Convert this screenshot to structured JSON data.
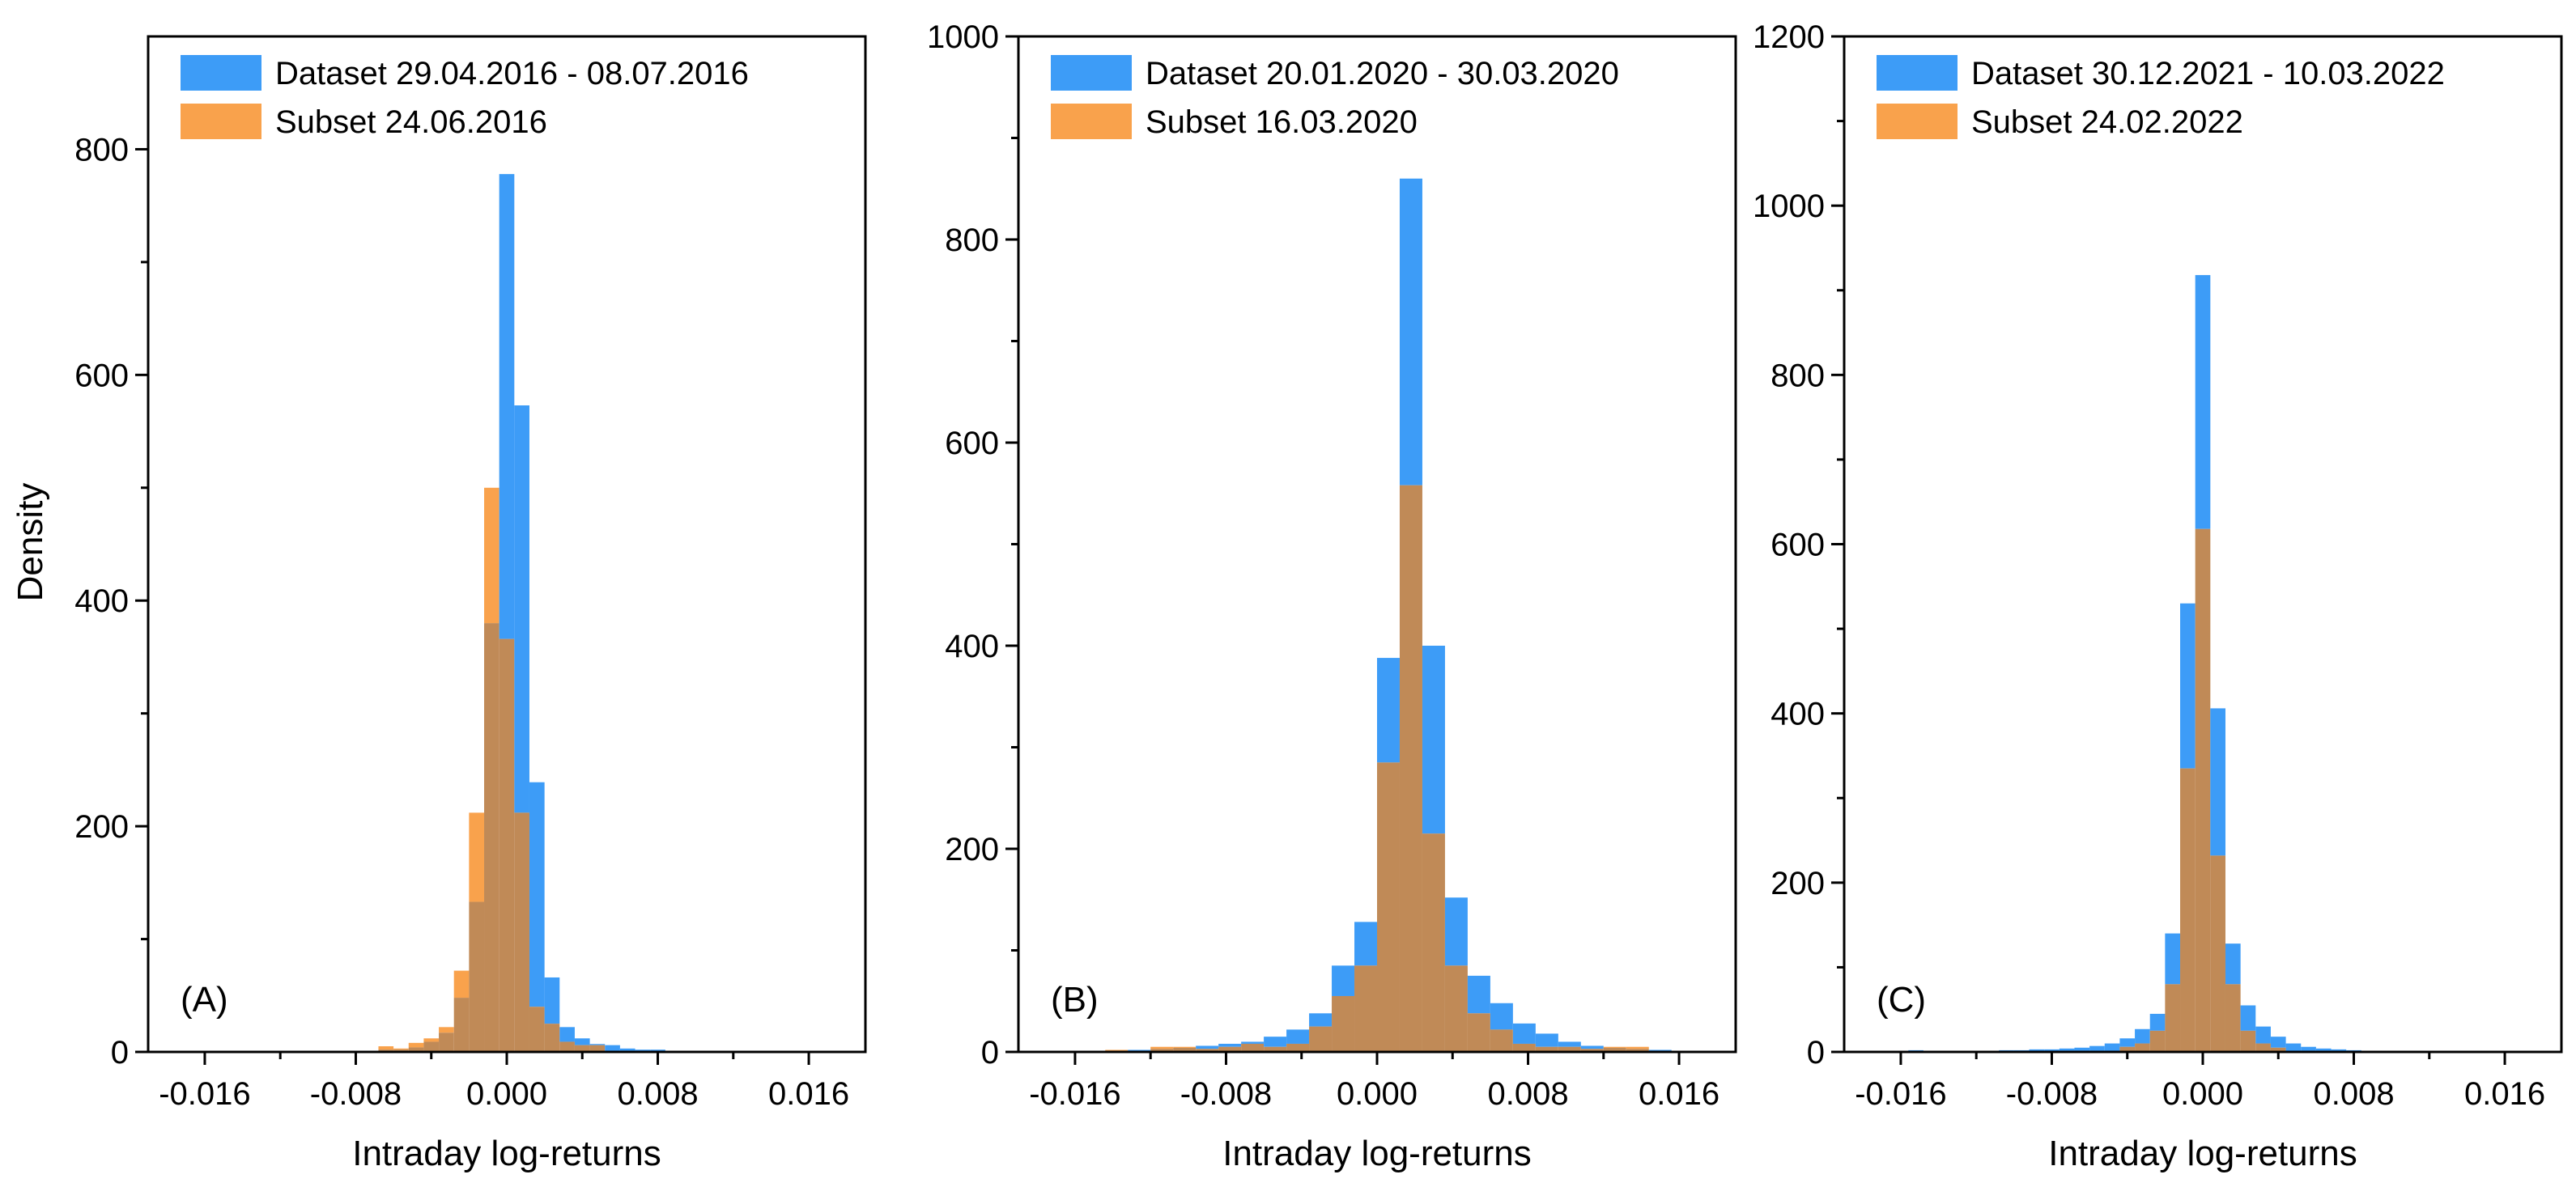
{
  "figure": {
    "ylabel": "Density",
    "colors": {
      "dataset": "#3d9cf7",
      "subset": "#f9a24c",
      "overlap": "#c08a57"
    }
  },
  "chart_data": [
    {
      "type": "bar",
      "panel_label": "(A)",
      "xlabel": "Intraday log-returns",
      "ylabel": "Density",
      "xlim": [
        -0.019,
        0.019
      ],
      "ylim": [
        0,
        900
      ],
      "xticks": [
        -0.016,
        -0.008,
        0.0,
        0.008,
        0.016
      ],
      "xtick_labels": [
        "-0.016",
        "-0.008",
        "0.000",
        "0.008",
        "0.016"
      ],
      "yticks": [
        0,
        200,
        400,
        600,
        800
      ],
      "ytick_labels": [
        "0",
        "200",
        "400",
        "600",
        "800"
      ],
      "legend_position": "top-left",
      "bin_width": 0.0008,
      "series": [
        {
          "name": "Dataset 29.04.2016 - 08.07.2016",
          "color": "#3d9cf7",
          "bin_start": [
            -0.0108,
            -0.01,
            -0.0092,
            -0.0084,
            -0.0076,
            -0.0068,
            -0.006,
            -0.0052,
            -0.0044,
            -0.0036,
            -0.0028,
            -0.002,
            -0.0012,
            -0.0004,
            0.0004,
            0.0012,
            0.002,
            0.0028,
            0.0036,
            0.0044,
            0.0052,
            0.006,
            0.0068,
            0.0076,
            0.0084,
            0.0092,
            0.01,
            0.0108,
            0.0116,
            0.0124
          ],
          "values": [
            1,
            0,
            1,
            0,
            1,
            2,
            2,
            4,
            9,
            17,
            48,
            133,
            380,
            778,
            573,
            239,
            66,
            22,
            12,
            7,
            6,
            3,
            2,
            2,
            1,
            1,
            1,
            0,
            1,
            0
          ]
        },
        {
          "name": "Subset 24.06.2016",
          "color": "#f9a24c",
          "bin_start": [
            -0.0108,
            -0.01,
            -0.0092,
            -0.0084,
            -0.0076,
            -0.0068,
            -0.006,
            -0.0052,
            -0.0044,
            -0.0036,
            -0.0028,
            -0.002,
            -0.0012,
            -0.0004,
            0.0004,
            0.0012,
            0.002,
            0.0028,
            0.0036,
            0.0044,
            0.0052,
            0.006,
            0.0068,
            0.0076,
            0.0084,
            0.0092,
            0.01,
            0.0108,
            0.0116,
            0.0124
          ],
          "values": [
            0,
            0,
            0,
            0,
            0,
            5,
            3,
            8,
            12,
            22,
            72,
            212,
            500,
            366,
            212,
            40,
            25,
            9,
            6,
            6,
            0,
            0,
            0,
            0,
            0,
            0,
            0,
            0,
            0,
            0
          ]
        }
      ]
    },
    {
      "type": "bar",
      "panel_label": "(B)",
      "xlabel": "Intraday log-returns",
      "ylabel": "",
      "xlim": [
        -0.019,
        0.019
      ],
      "ylim": [
        0,
        1000
      ],
      "xticks": [
        -0.016,
        -0.008,
        0.0,
        0.008,
        0.016
      ],
      "xtick_labels": [
        "-0.016",
        "-0.008",
        "0.000",
        "0.008",
        "0.016"
      ],
      "yticks": [
        0,
        200,
        400,
        600,
        800,
        1000
      ],
      "ytick_labels": [
        "0",
        "200",
        "400",
        "600",
        "800",
        "1000"
      ],
      "legend_position": "top-left",
      "bin_width": 0.0012,
      "series": [
        {
          "name": "Dataset 20.01.2020 - 30.03.2020",
          "color": "#3d9cf7",
          "bin_start": [
            -0.0156,
            -0.0144,
            -0.0132,
            -0.012,
            -0.0108,
            -0.0096,
            -0.0084,
            -0.0072,
            -0.006,
            -0.0048,
            -0.0036,
            -0.0024,
            -0.0012,
            0.0,
            0.0012,
            0.0024,
            0.0036,
            0.0048,
            0.006,
            0.0072,
            0.0084,
            0.0096,
            0.0108,
            0.012,
            0.0132,
            0.0144
          ],
          "values": [
            1,
            1,
            2,
            3,
            4,
            6,
            8,
            10,
            15,
            22,
            38,
            85,
            128,
            388,
            860,
            400,
            152,
            75,
            48,
            28,
            18,
            10,
            6,
            4,
            3,
            2
          ]
        },
        {
          "name": "Subset 16.03.2020",
          "color": "#f9a24c",
          "bin_start": [
            -0.0156,
            -0.0144,
            -0.0132,
            -0.012,
            -0.0108,
            -0.0096,
            -0.0084,
            -0.0072,
            -0.006,
            -0.0048,
            -0.0036,
            -0.0024,
            -0.0012,
            0.0,
            0.0012,
            0.0024,
            0.0036,
            0.0048,
            0.006,
            0.0072,
            0.0084,
            0.0096,
            0.0108,
            0.012,
            0.0132,
            0.0144
          ],
          "values": [
            0,
            2,
            0,
            5,
            5,
            3,
            5,
            8,
            5,
            8,
            25,
            55,
            85,
            285,
            558,
            215,
            85,
            38,
            22,
            8,
            5,
            5,
            3,
            5,
            5,
            0
          ]
        }
      ]
    },
    {
      "type": "bar",
      "panel_label": "(C)",
      "xlabel": "Intraday log-returns",
      "ylabel": "",
      "xlim": [
        -0.019,
        0.019
      ],
      "ylim": [
        0,
        1200
      ],
      "xticks": [
        -0.016,
        -0.008,
        0.0,
        0.008,
        0.016
      ],
      "xtick_labels": [
        "-0.016",
        "-0.008",
        "0.000",
        "0.008",
        "0.016"
      ],
      "yticks": [
        0,
        200,
        400,
        600,
        800,
        1000,
        1200
      ],
      "ytick_labels": [
        "0",
        "200",
        "400",
        "600",
        "800",
        "1000",
        "1200"
      ],
      "legend_position": "top-left",
      "bin_width": 0.0008,
      "series": [
        {
          "name": "Dataset 30.12.2021 - 10.03.2022",
          "color": "#3d9cf7",
          "bin_start": [
            -0.0156,
            -0.0148,
            -0.014,
            -0.0132,
            -0.0124,
            -0.0116,
            -0.0108,
            -0.01,
            -0.0092,
            -0.0084,
            -0.0076,
            -0.0068,
            -0.006,
            -0.0052,
            -0.0044,
            -0.0036,
            -0.0028,
            -0.002,
            -0.0012,
            -0.0004,
            0.0004,
            0.0012,
            0.002,
            0.0028,
            0.0036,
            0.0044,
            0.0052,
            0.006,
            0.0068,
            0.0076,
            0.0084,
            0.0092,
            0.01
          ],
          "values": [
            2,
            1,
            0,
            1,
            1,
            1,
            2,
            2,
            3,
            3,
            4,
            5,
            7,
            10,
            16,
            27,
            45,
            140,
            530,
            918,
            406,
            128,
            55,
            30,
            18,
            10,
            6,
            4,
            3,
            2,
            1,
            1,
            1
          ]
        },
        {
          "name": "Subset 24.02.2022",
          "color": "#f9a24c",
          "bin_start": [
            -0.0156,
            -0.0148,
            -0.014,
            -0.0132,
            -0.0124,
            -0.0116,
            -0.0108,
            -0.01,
            -0.0092,
            -0.0084,
            -0.0076,
            -0.0068,
            -0.006,
            -0.0052,
            -0.0044,
            -0.0036,
            -0.0028,
            -0.002,
            -0.0012,
            -0.0004,
            0.0004,
            0.0012,
            0.002,
            0.0028,
            0.0036,
            0.0044,
            0.0052,
            0.006,
            0.0068,
            0.0076,
            0.0084,
            0.0092,
            0.01
          ],
          "values": [
            0,
            0,
            0,
            0,
            0,
            0,
            0,
            0,
            0,
            0,
            0,
            0,
            0,
            0,
            6,
            10,
            25,
            80,
            335,
            618,
            232,
            80,
            25,
            10,
            5,
            0,
            0,
            0,
            0,
            0,
            0,
            0,
            0
          ]
        }
      ]
    }
  ]
}
